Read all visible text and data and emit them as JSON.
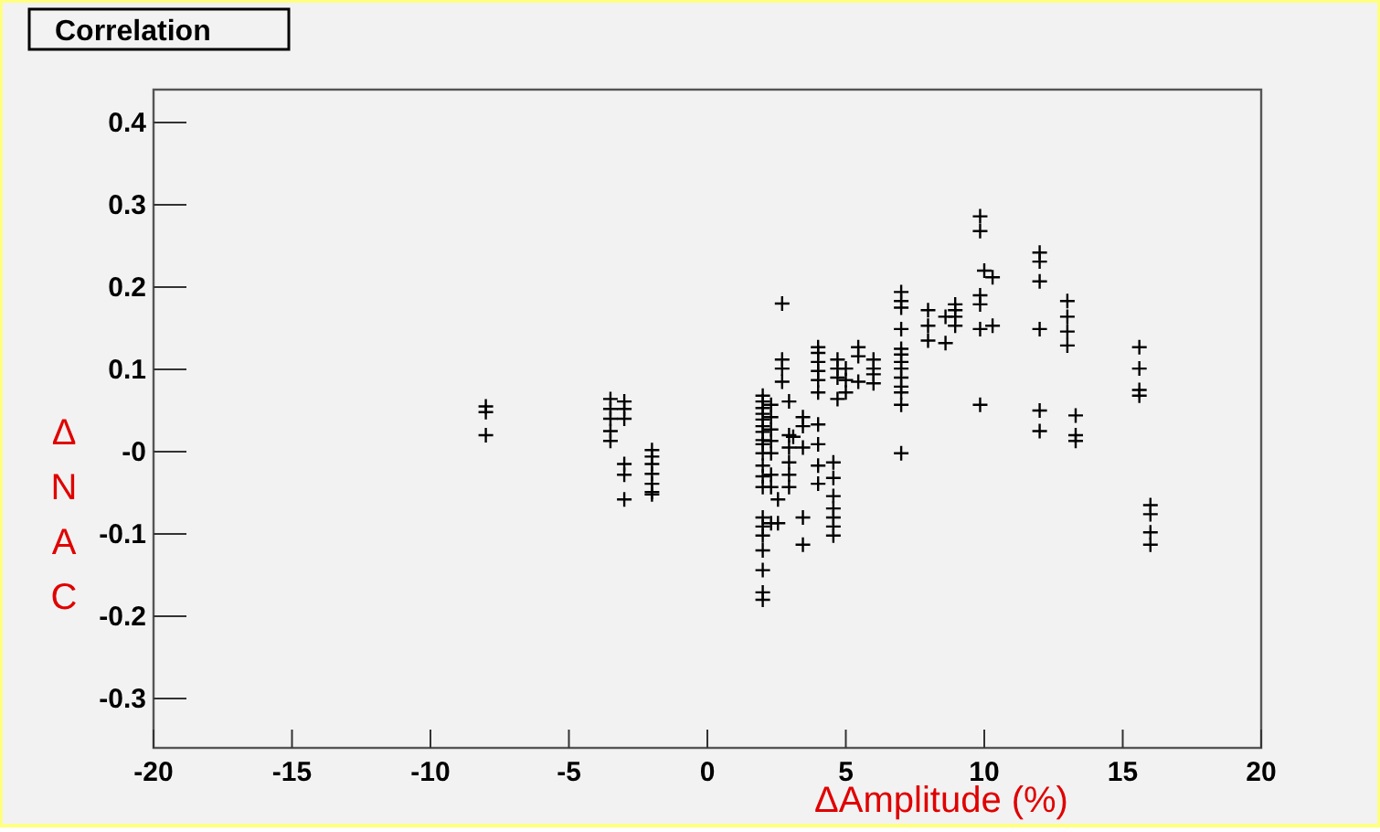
{
  "chart_data": {
    "type": "scatter",
    "title": "Correlation",
    "xlabel": "ΔAmplitude (%)",
    "ylabel": "ΔNAC",
    "xlim": [
      -20,
      20
    ],
    "xticks": [
      -20,
      -15,
      -10,
      -5,
      0,
      5,
      10,
      15,
      20
    ],
    "ylim": [
      -0.36,
      0.44
    ],
    "yticks": [
      -0.3,
      -0.2,
      -0.1,
      {
        "value": 0,
        "label": "-0"
      },
      0.1,
      0.2,
      0.3,
      0.4
    ],
    "grid": false,
    "marker": "cross",
    "series": [
      {
        "color": "#000000",
        "x": [
          -8,
          -8,
          -8,
          -3.5,
          -3.5,
          -3.5,
          -3.5,
          -3.5,
          -3,
          -3,
          -3,
          -3,
          -3,
          -3,
          -2,
          -2,
          -2,
          -2,
          -2,
          -2,
          -2,
          2,
          2,
          2,
          2,
          2,
          2,
          2,
          2,
          2,
          2,
          2,
          2,
          2,
          2,
          2,
          2,
          2,
          2,
          2,
          2,
          2.3,
          2.3,
          2.3,
          2.3,
          2.3,
          2.3,
          2.3,
          2.3,
          2.55,
          2.55,
          2.7,
          2.7,
          2.7,
          2.7,
          2.95,
          2.95,
          2.95,
          2.95,
          2.95,
          2.95,
          3.1,
          3.45,
          3.45,
          3.45,
          3.45,
          3.45,
          4,
          4,
          4,
          4,
          4,
          4,
          4,
          4,
          4,
          4,
          4.55,
          4.55,
          4.55,
          4.55,
          4.55,
          4.55,
          4.55,
          4.7,
          4.7,
          4.7,
          4.7,
          5,
          5,
          5,
          5.45,
          5.45,
          5.45,
          6,
          6,
          6,
          6,
          7,
          7,
          7,
          7,
          7,
          7,
          7,
          7,
          7,
          7,
          7,
          7,
          7,
          7.97,
          7.97,
          7.97,
          8.6,
          8.6,
          8.95,
          8.95,
          8.95,
          8.95,
          9.85,
          9.85,
          9.85,
          9.85,
          9.85,
          9.85,
          10,
          10.3,
          10.3,
          12,
          12,
          12,
          12,
          12,
          12,
          13,
          13,
          13,
          13,
          13.3,
          13.3,
          13.3,
          15.6,
          15.6,
          15.6,
          15.6,
          16,
          16,
          16,
          16
        ],
        "values": [
          0.055,
          0.048,
          0.02,
          0.064,
          0.052,
          0.04,
          0.025,
          0.013,
          0.061,
          0.052,
          0.04,
          -0.015,
          -0.028,
          -0.058,
          0.002,
          -0.006,
          -0.015,
          -0.027,
          -0.039,
          -0.049,
          -0.052,
          0.068,
          0.061,
          0.053,
          0.046,
          0.039,
          0.031,
          0.024,
          0.014,
          0.009,
          -0.002,
          -0.017,
          -0.03,
          -0.043,
          -0.08,
          -0.091,
          -0.102,
          -0.12,
          -0.144,
          -0.171,
          -0.18,
          0.057,
          0.042,
          0.027,
          0.013,
          -0.002,
          -0.028,
          -0.043,
          -0.087,
          -0.087,
          -0.058,
          0.18,
          0.112,
          0.101,
          0.085,
          0.061,
          0.02,
          0.005,
          -0.013,
          -0.028,
          -0.043,
          0.018,
          0.042,
          0.031,
          0.005,
          -0.08,
          -0.113,
          0.127,
          0.12,
          0.109,
          0.098,
          0.087,
          0.072,
          0.033,
          0.009,
          -0.017,
          -0.039,
          -0.013,
          -0.032,
          -0.054,
          -0.069,
          -0.08,
          -0.091,
          -0.102,
          0.112,
          0.101,
          0.09,
          0.064,
          0.101,
          0.087,
          0.072,
          0.127,
          0.116,
          0.085,
          0.112,
          0.101,
          0.094,
          0.083,
          0.194,
          0.183,
          0.175,
          0.149,
          0.125,
          0.118,
          0.109,
          0.101,
          0.09,
          0.079,
          0.072,
          0.057,
          -0.002,
          0.172,
          0.153,
          0.135,
          0.164,
          0.132,
          0.179,
          0.172,
          0.164,
          0.153,
          0.19,
          0.179,
          0.149,
          0.057,
          0.286,
          0.268,
          0.22,
          0.212,
          0.153,
          0.242,
          0.231,
          0.207,
          0.149,
          0.05,
          0.025,
          0.183,
          0.164,
          0.146,
          0.129,
          0.044,
          0.02,
          0.013,
          0.127,
          0.101,
          0.075,
          0.068,
          -0.065,
          -0.076,
          -0.098,
          -0.113
        ]
      }
    ]
  }
}
